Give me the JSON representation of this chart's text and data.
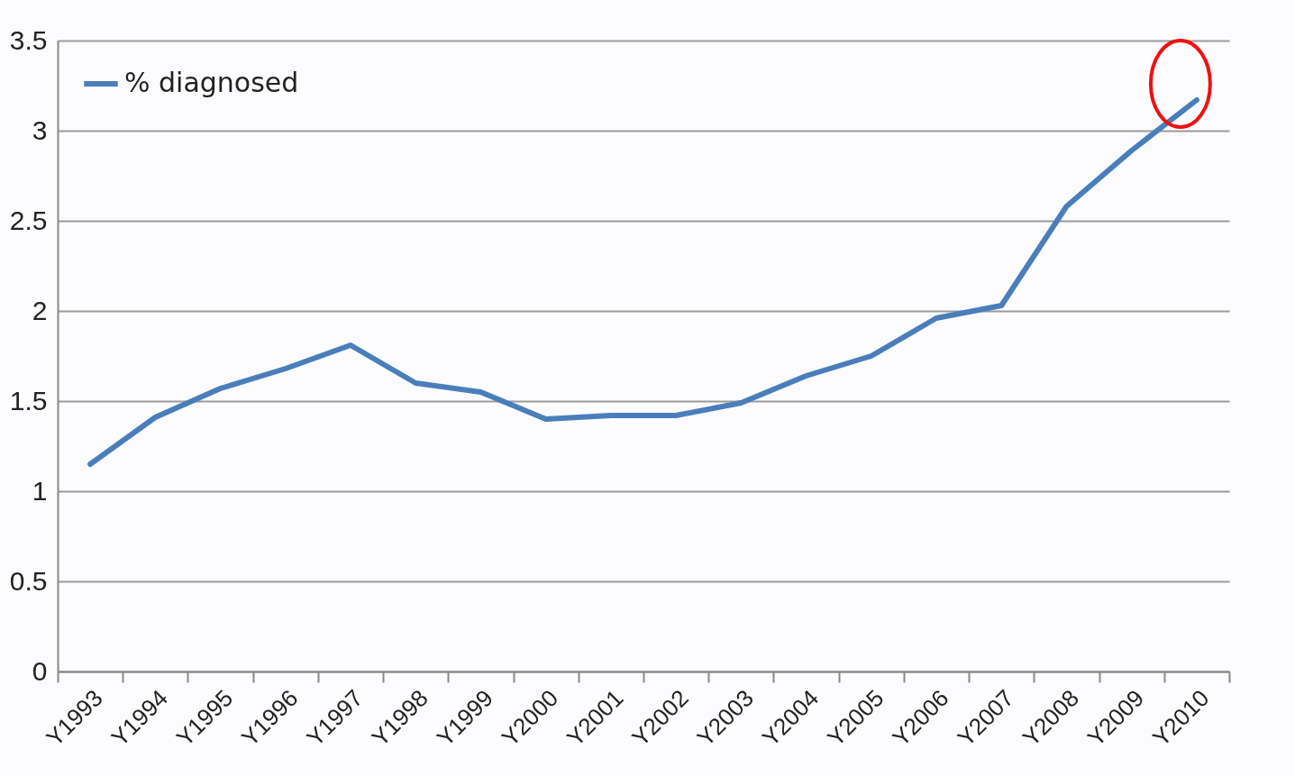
{
  "chart_data": {
    "type": "line",
    "categories": [
      "Y1993",
      "Y1994",
      "Y1995",
      "Y1996",
      "Y1997",
      "Y1998",
      "Y1999",
      "Y2000",
      "Y2001",
      "Y2002",
      "Y2003",
      "Y2004",
      "Y2005",
      "Y2006",
      "Y2007",
      "Y2008",
      "Y2009",
      "Y2010"
    ],
    "series": [
      {
        "name": "% diagnosed",
        "color": "#4a7ebb",
        "values": [
          1.15,
          1.41,
          1.57,
          1.68,
          1.81,
          1.6,
          1.55,
          1.4,
          1.42,
          1.42,
          1.49,
          1.64,
          1.75,
          1.96,
          2.03,
          2.58,
          2.89,
          3.17
        ]
      }
    ],
    "ylim": [
      0,
      3.5
    ],
    "yticks": [
      0,
      0.5,
      1,
      1.5,
      2,
      2.5,
      3,
      3.5
    ],
    "grid": "y",
    "legend": "top left",
    "marker": "none",
    "line_style": "solid"
  }
}
